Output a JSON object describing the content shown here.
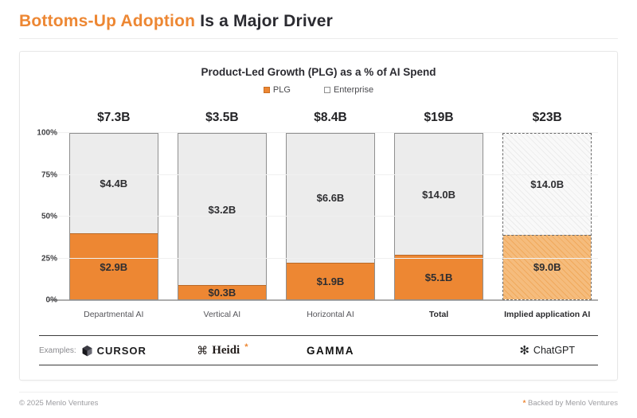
{
  "header": {
    "title_accent": "Bottoms-Up Adoption",
    "title_rest": "Is a Major Driver"
  },
  "chart_data": {
    "type": "bar",
    "variant": "stacked-100-percent",
    "title": "Product-Led Growth (PLG) as a % of AI Spend",
    "unit": "$B",
    "legend": [
      {
        "name": "PLG",
        "swatch": "filled-orange"
      },
      {
        "name": "Enterprise",
        "swatch": "outlined-white"
      }
    ],
    "legend_position": "top",
    "grid": true,
    "y_axis": {
      "ticks": [
        0,
        25,
        50,
        75,
        100
      ],
      "tick_labels": [
        "0%",
        "25%",
        "50%",
        "75%",
        "100%"
      ]
    },
    "categories": [
      "Departmental AI",
      "Vertical AI",
      "Horizontal AI",
      "Total",
      "Implied application AI"
    ],
    "category_emphasis": [
      false,
      false,
      false,
      true,
      true
    ],
    "totals_labels": [
      "$7.3B",
      "$3.5B",
      "$8.4B",
      "$19B",
      "$23B"
    ],
    "series": [
      {
        "name": "PLG",
        "values": [
          2.9,
          0.3,
          1.9,
          5.1,
          9.0
        ],
        "labels": [
          "$2.9B",
          "$0.3B",
          "$1.9B",
          "$5.1B",
          "$9.0B"
        ]
      },
      {
        "name": "Enterprise",
        "values": [
          4.4,
          3.2,
          6.6,
          14.0,
          14.0
        ],
        "labels": [
          "$4.4B",
          "$3.2B",
          "$6.6B",
          "$14.0B",
          "$14.0B"
        ]
      }
    ],
    "implied_bar_index": 4
  },
  "examples": {
    "label": "Examples:",
    "items": [
      {
        "name": "Cursor",
        "text": "CURSOR",
        "icon": "cursor-cube-icon",
        "column": 0
      },
      {
        "name": "Heidi",
        "text": "Heidi",
        "asterisk": "*",
        "icon": "heidi-knot-icon",
        "column": 1
      },
      {
        "name": "Gamma",
        "text": "GAMMA",
        "icon": null,
        "column": 2
      },
      {
        "name": "ChatGPT",
        "text": "ChatGPT",
        "icon": "openai-icon",
        "column": 4
      }
    ]
  },
  "footer": {
    "copyright": "© 2025 Menlo Ventures",
    "note_asterisk": "*",
    "note_text": "Backed by Menlo Ventures"
  },
  "colors": {
    "accent_orange": "#ED8733",
    "accent_orange_light": "#F5BC7D",
    "accent_orange_light2": "#F0A95C",
    "enterprise_gray": "#ECECEC",
    "enterprise_hatch_light": "#F9F9F9",
    "enterprise_hatch_dark": "#ECECEC",
    "bar_border_gray": "#8F8F8F",
    "dark_text": "#2E2E31",
    "muted_text": "#6E6E73"
  }
}
